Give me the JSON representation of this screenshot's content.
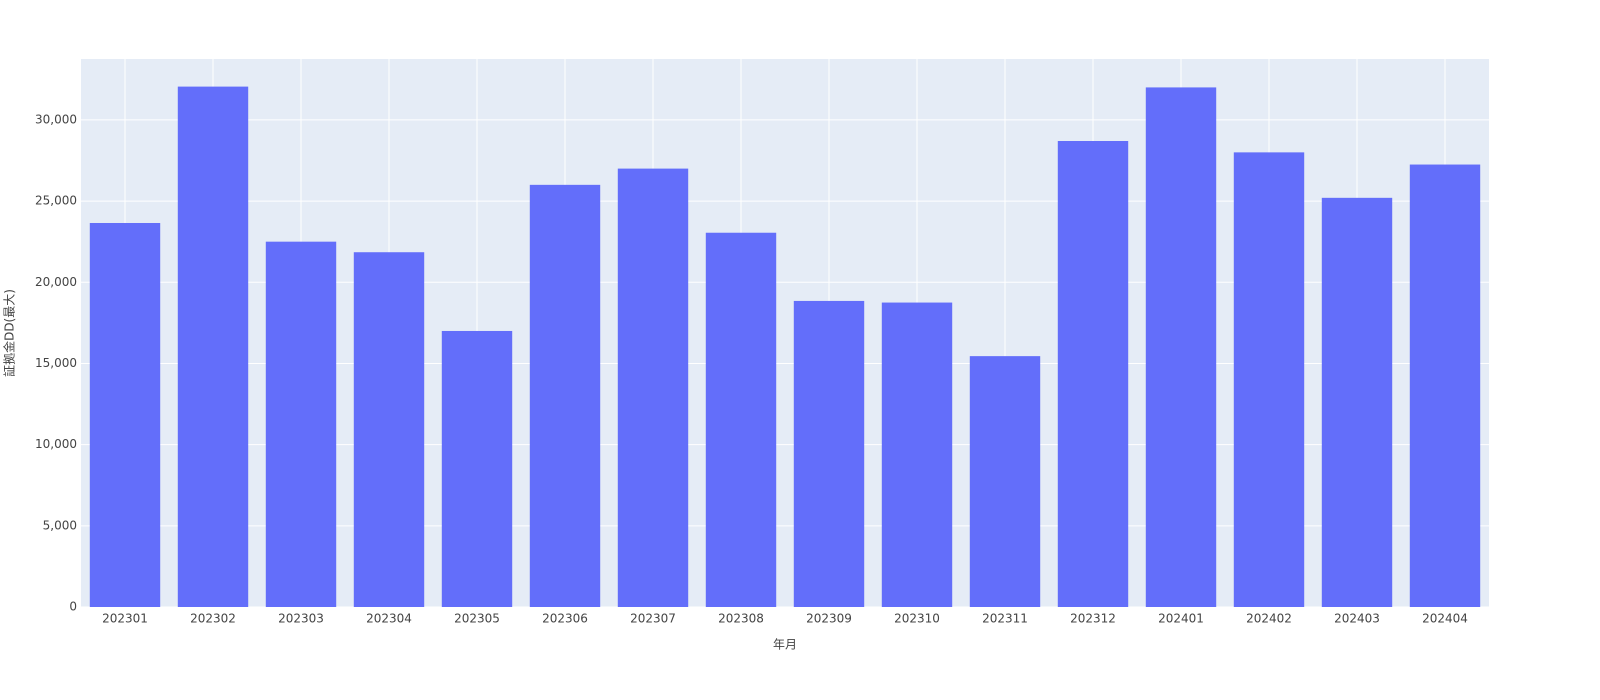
{
  "chart_data": {
    "type": "bar",
    "x_label": "年月",
    "y_label": "証拠金DD(最大)",
    "categories": [
      "202301",
      "202302",
      "202303",
      "202304",
      "202305",
      "202306",
      "202307",
      "202308",
      "202309",
      "202310",
      "202311",
      "202312",
      "202401",
      "202402",
      "202403",
      "202404"
    ],
    "values": [
      23650,
      32050,
      22500,
      21850,
      17000,
      26000,
      27000,
      23050,
      18850,
      18750,
      15450,
      28700,
      32000,
      28000,
      25200,
      27250
    ],
    "color": "#636efa",
    "ylim": [
      0,
      33750
    ],
    "yticks": [
      0,
      {
        "value": 5000,
        "label": "5,000"
      },
      {
        "value": 10000,
        "label": "10,000"
      },
      {
        "value": 15000,
        "label": "15,000"
      },
      {
        "value": 20000,
        "label": "20,000"
      },
      {
        "value": 25000,
        "label": "25,000"
      },
      {
        "value": 30000,
        "label": "30,000"
      }
    ],
    "grid": true
  }
}
